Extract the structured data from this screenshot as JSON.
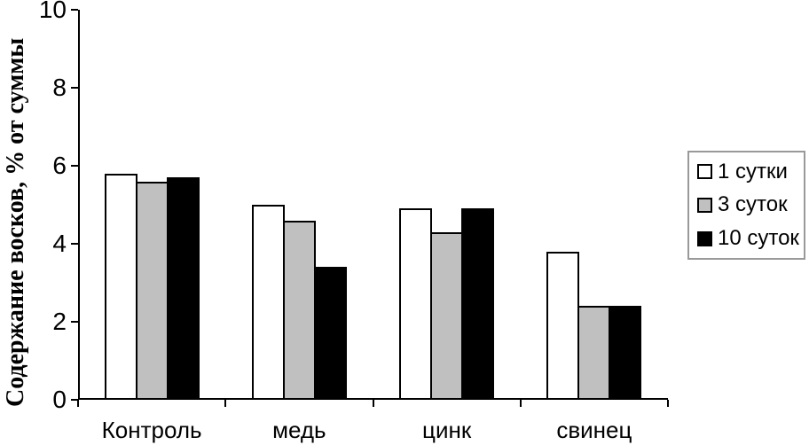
{
  "figure": {
    "background": "#ffffff",
    "axis_color": "#000000"
  },
  "chart_data": {
    "type": "bar",
    "title": "",
    "xlabel": "",
    "ylabel": "Содержание восков, % от суммы",
    "categories": [
      "Контроль",
      "медь",
      "цинк",
      "свинец"
    ],
    "series": [
      {
        "name": "1 сутки",
        "fill": "#ffffff",
        "border": "#000000",
        "values": [
          5.8,
          5.0,
          4.9,
          3.8
        ]
      },
      {
        "name": "3 суток",
        "fill": "#c0c0c0",
        "border": "#000000",
        "values": [
          5.6,
          4.6,
          4.3,
          2.4
        ]
      },
      {
        "name": "10 суток",
        "fill": "#000000",
        "border": "#000000",
        "values": [
          5.7,
          3.4,
          4.9,
          2.4
        ]
      }
    ],
    "ylim": [
      0,
      10
    ],
    "yticks": [
      0,
      2,
      4,
      6,
      8,
      10
    ],
    "grid": false,
    "legend_position": "right"
  }
}
